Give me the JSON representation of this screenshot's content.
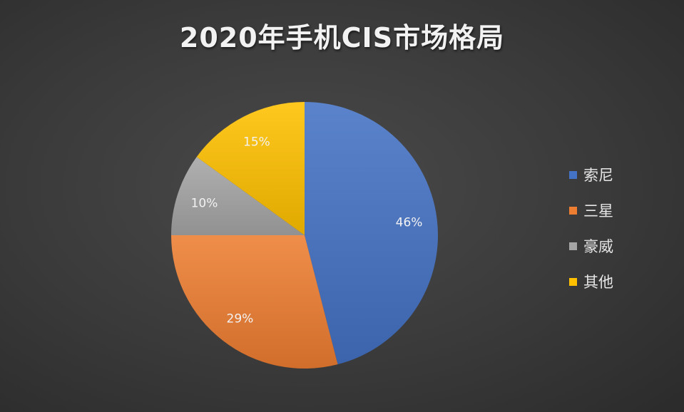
{
  "chart_data": {
    "type": "pie",
    "title": "2020年手机CIS市场格局",
    "categories": [
      "索尼",
      "三星",
      "豪威",
      "其他"
    ],
    "values": [
      46,
      29,
      10,
      15
    ],
    "labels": [
      "46%",
      "29%",
      "10%",
      "15%"
    ],
    "colors": [
      "#4472C4",
      "#ED7D31",
      "#A5A5A5",
      "#FFC000"
    ],
    "legend_position": "right",
    "start_angle": "top, clockwise"
  }
}
